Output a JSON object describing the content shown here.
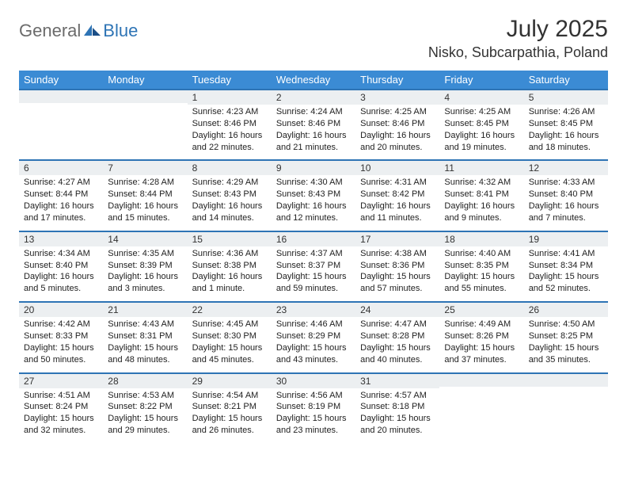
{
  "brand": {
    "general": "General",
    "blue": "Blue"
  },
  "title": "July 2025",
  "location": "Nisko, Subcarpathia, Poland",
  "colors": {
    "header_bg": "#3b8bd4",
    "accent": "#2e74b5",
    "daynum_bg": "#eceff1"
  },
  "day_names": [
    "Sunday",
    "Monday",
    "Tuesday",
    "Wednesday",
    "Thursday",
    "Friday",
    "Saturday"
  ],
  "weeks": [
    [
      null,
      null,
      {
        "n": "1",
        "sr": "4:23 AM",
        "ss": "8:46 PM",
        "dl": "16 hours and 22 minutes."
      },
      {
        "n": "2",
        "sr": "4:24 AM",
        "ss": "8:46 PM",
        "dl": "16 hours and 21 minutes."
      },
      {
        "n": "3",
        "sr": "4:25 AM",
        "ss": "8:46 PM",
        "dl": "16 hours and 20 minutes."
      },
      {
        "n": "4",
        "sr": "4:25 AM",
        "ss": "8:45 PM",
        "dl": "16 hours and 19 minutes."
      },
      {
        "n": "5",
        "sr": "4:26 AM",
        "ss": "8:45 PM",
        "dl": "16 hours and 18 minutes."
      }
    ],
    [
      {
        "n": "6",
        "sr": "4:27 AM",
        "ss": "8:44 PM",
        "dl": "16 hours and 17 minutes."
      },
      {
        "n": "7",
        "sr": "4:28 AM",
        "ss": "8:44 PM",
        "dl": "16 hours and 15 minutes."
      },
      {
        "n": "8",
        "sr": "4:29 AM",
        "ss": "8:43 PM",
        "dl": "16 hours and 14 minutes."
      },
      {
        "n": "9",
        "sr": "4:30 AM",
        "ss": "8:43 PM",
        "dl": "16 hours and 12 minutes."
      },
      {
        "n": "10",
        "sr": "4:31 AM",
        "ss": "8:42 PM",
        "dl": "16 hours and 11 minutes."
      },
      {
        "n": "11",
        "sr": "4:32 AM",
        "ss": "8:41 PM",
        "dl": "16 hours and 9 minutes."
      },
      {
        "n": "12",
        "sr": "4:33 AM",
        "ss": "8:40 PM",
        "dl": "16 hours and 7 minutes."
      }
    ],
    [
      {
        "n": "13",
        "sr": "4:34 AM",
        "ss": "8:40 PM",
        "dl": "16 hours and 5 minutes."
      },
      {
        "n": "14",
        "sr": "4:35 AM",
        "ss": "8:39 PM",
        "dl": "16 hours and 3 minutes."
      },
      {
        "n": "15",
        "sr": "4:36 AM",
        "ss": "8:38 PM",
        "dl": "16 hours and 1 minute."
      },
      {
        "n": "16",
        "sr": "4:37 AM",
        "ss": "8:37 PM",
        "dl": "15 hours and 59 minutes."
      },
      {
        "n": "17",
        "sr": "4:38 AM",
        "ss": "8:36 PM",
        "dl": "15 hours and 57 minutes."
      },
      {
        "n": "18",
        "sr": "4:40 AM",
        "ss": "8:35 PM",
        "dl": "15 hours and 55 minutes."
      },
      {
        "n": "19",
        "sr": "4:41 AM",
        "ss": "8:34 PM",
        "dl": "15 hours and 52 minutes."
      }
    ],
    [
      {
        "n": "20",
        "sr": "4:42 AM",
        "ss": "8:33 PM",
        "dl": "15 hours and 50 minutes."
      },
      {
        "n": "21",
        "sr": "4:43 AM",
        "ss": "8:31 PM",
        "dl": "15 hours and 48 minutes."
      },
      {
        "n": "22",
        "sr": "4:45 AM",
        "ss": "8:30 PM",
        "dl": "15 hours and 45 minutes."
      },
      {
        "n": "23",
        "sr": "4:46 AM",
        "ss": "8:29 PM",
        "dl": "15 hours and 43 minutes."
      },
      {
        "n": "24",
        "sr": "4:47 AM",
        "ss": "8:28 PM",
        "dl": "15 hours and 40 minutes."
      },
      {
        "n": "25",
        "sr": "4:49 AM",
        "ss": "8:26 PM",
        "dl": "15 hours and 37 minutes."
      },
      {
        "n": "26",
        "sr": "4:50 AM",
        "ss": "8:25 PM",
        "dl": "15 hours and 35 minutes."
      }
    ],
    [
      {
        "n": "27",
        "sr": "4:51 AM",
        "ss": "8:24 PM",
        "dl": "15 hours and 32 minutes."
      },
      {
        "n": "28",
        "sr": "4:53 AM",
        "ss": "8:22 PM",
        "dl": "15 hours and 29 minutes."
      },
      {
        "n": "29",
        "sr": "4:54 AM",
        "ss": "8:21 PM",
        "dl": "15 hours and 26 minutes."
      },
      {
        "n": "30",
        "sr": "4:56 AM",
        "ss": "8:19 PM",
        "dl": "15 hours and 23 minutes."
      },
      {
        "n": "31",
        "sr": "4:57 AM",
        "ss": "8:18 PM",
        "dl": "15 hours and 20 minutes."
      },
      null,
      null
    ]
  ],
  "labels": {
    "sunrise": "Sunrise:",
    "sunset": "Sunset:",
    "daylight": "Daylight:"
  }
}
